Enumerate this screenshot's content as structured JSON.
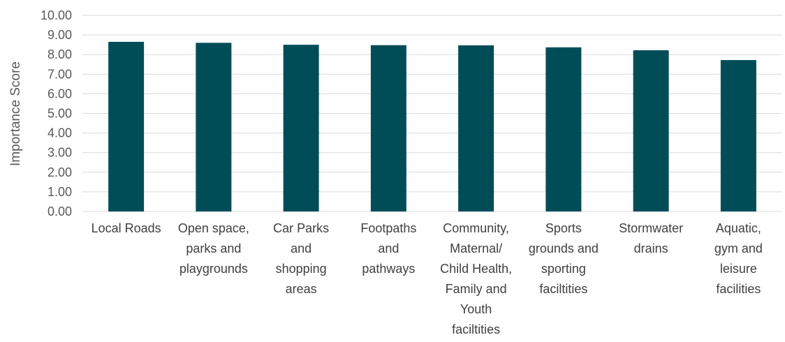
{
  "chart_data": {
    "type": "bar",
    "title": "",
    "xlabel": "",
    "ylabel": "Importance Score",
    "ylim": [
      0,
      10
    ],
    "ytick_step": 1,
    "ytick_labels": [
      "0.00",
      "1.00",
      "2.00",
      "3.00",
      "4.00",
      "5.00",
      "6.00",
      "7.00",
      "8.00",
      "9.00",
      "10.00"
    ],
    "grid": true,
    "legend": "none",
    "bar_color": "#004D57",
    "categories": [
      "Local Roads",
      "Open space, parks and playgrounds",
      "Car Parks and shopping areas",
      "Footpaths and pathways",
      "Community, Maternal/ Child Health, Family and Youth faciltities",
      "Sports grounds and sporting faciltities",
      "Stormwater drains",
      "Aquatic, gym and leisure facilities"
    ],
    "category_label_lines": [
      [
        "Local Roads"
      ],
      [
        "Open space,",
        "parks and",
        "playgrounds"
      ],
      [
        "Car Parks",
        "and",
        "shopping",
        "areas"
      ],
      [
        "Footpaths",
        "and",
        "pathways"
      ],
      [
        "Community,",
        "Maternal/",
        "Child Health,",
        "Family and",
        "Youth",
        "faciltities"
      ],
      [
        "Sports",
        "grounds and",
        "sporting",
        "faciltities"
      ],
      [
        "Stormwater",
        "drains"
      ],
      [
        "Aquatic,",
        "gym and",
        "leisure",
        "facilities"
      ]
    ],
    "values": [
      8.65,
      8.6,
      8.5,
      8.48,
      8.47,
      8.37,
      8.22,
      7.72
    ]
  }
}
